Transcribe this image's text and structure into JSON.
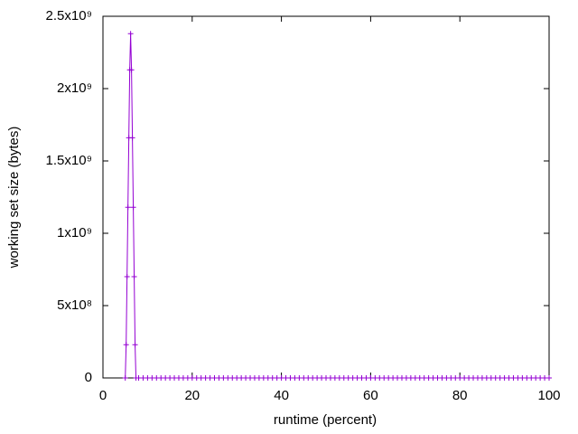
{
  "chart_data": {
    "type": "line",
    "x_label": "runtime (percent)",
    "y_label": "working set size (bytes)",
    "xlim": [
      0,
      100
    ],
    "xticks": [
      0,
      20,
      40,
      60,
      80,
      100
    ],
    "ylim": [
      0,
      2500000000
    ],
    "yticks": [
      0,
      {
        "value": 500000000,
        "label": "5x10⁸"
      },
      {
        "value": 1000000000,
        "label": "1x10⁹"
      },
      {
        "value": 1500000000,
        "label": "1.5x10⁹"
      },
      {
        "value": 2000000000,
        "label": "2x10⁹"
      },
      {
        "value": 2500000000,
        "label": "2.5x10⁹"
      }
    ],
    "x": [
      5,
      5.2,
      5.4,
      5.6,
      5.8,
      6,
      6.2,
      6.4,
      6.6,
      6.8,
      7,
      7.2,
      7.4,
      8,
      9,
      10,
      11,
      12,
      13,
      14,
      15,
      16,
      17,
      18,
      19,
      20,
      21,
      22,
      23,
      24,
      25,
      26,
      27,
      28,
      29,
      30,
      31,
      32,
      33,
      34,
      35,
      36,
      37,
      38,
      39,
      40,
      41,
      42,
      43,
      44,
      45,
      46,
      47,
      48,
      49,
      50,
      51,
      52,
      53,
      54,
      55,
      56,
      57,
      58,
      59,
      60,
      61,
      62,
      63,
      64,
      65,
      66,
      67,
      68,
      69,
      70,
      71,
      72,
      73,
      74,
      75,
      76,
      77,
      78,
      79,
      80,
      81,
      82,
      83,
      84,
      85,
      86,
      87,
      88,
      89,
      90,
      91,
      92,
      93,
      94,
      95,
      96,
      97,
      98,
      99,
      100
    ],
    "series": [
      {
        "color": "#9400d3",
        "values": [
          0,
          230000000,
          700000000,
          1180000000,
          1660000000,
          2130000000,
          2380000000,
          2130000000,
          1660000000,
          1180000000,
          700000000,
          230000000,
          0,
          0,
          0,
          0,
          0,
          0,
          0,
          0,
          0,
          0,
          0,
          0,
          0,
          0,
          0,
          0,
          0,
          0,
          0,
          0,
          0,
          0,
          0,
          0,
          0,
          0,
          0,
          0,
          0,
          0,
          0,
          0,
          0,
          0,
          0,
          0,
          0,
          0,
          0,
          0,
          0,
          0,
          0,
          0,
          0,
          0,
          0,
          0,
          0,
          0,
          0,
          0,
          0,
          0,
          0,
          0,
          0,
          0,
          0,
          0,
          0,
          0,
          0,
          0,
          0,
          0,
          0,
          0,
          0,
          0,
          0,
          0,
          0,
          0,
          0,
          0,
          0,
          0,
          0,
          0,
          0,
          0,
          0,
          0,
          0,
          0,
          0,
          0,
          0,
          0,
          0,
          0,
          0,
          0
        ]
      }
    ]
  }
}
